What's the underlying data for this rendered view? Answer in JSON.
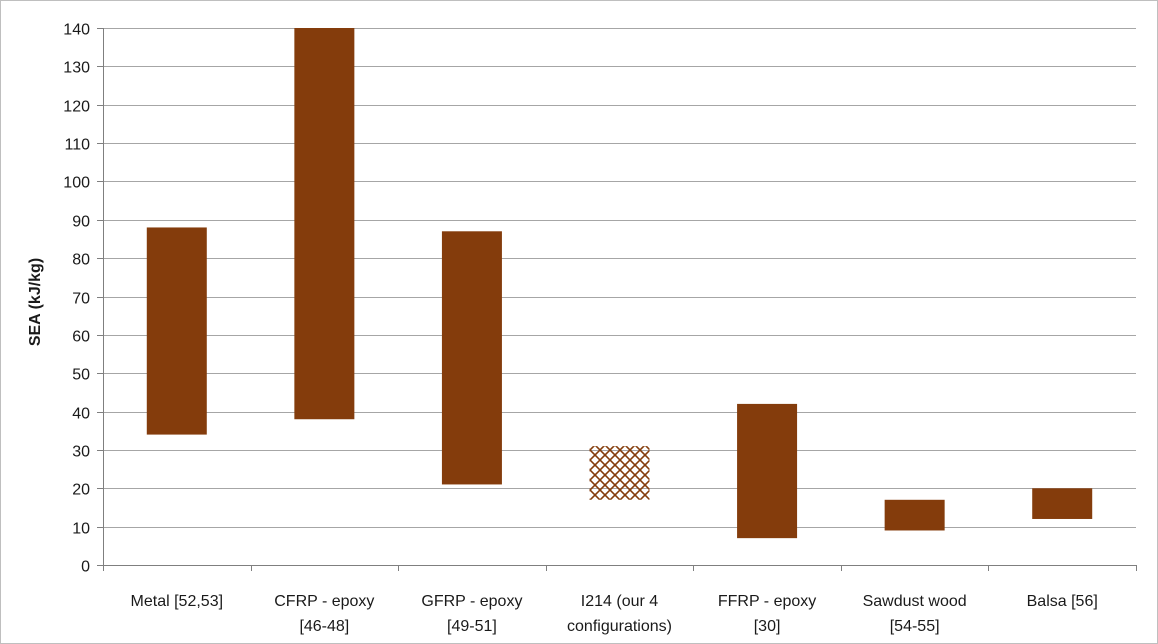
{
  "chart_data": {
    "type": "bar",
    "subtype": "floating-range",
    "title": "",
    "xlabel": "",
    "ylabel": "SEA (kJ/kg)",
    "ylim": [
      0,
      140
    ],
    "yticks": [
      0,
      10,
      20,
      30,
      40,
      50,
      60,
      70,
      80,
      90,
      100,
      110,
      120,
      130,
      140
    ],
    "grid": true,
    "legend": "none",
    "colors": {
      "bar": "#843C0C",
      "hatch": "#843C0C",
      "grid": "#a6a6a6"
    },
    "categories": [
      [
        "Metal [52,53]"
      ],
      [
        "CFRP - epoxy",
        "[46-48]"
      ],
      [
        "GFRP - epoxy",
        "[49-51]"
      ],
      [
        "I214 (our 4",
        "configurations)"
      ],
      [
        "FFRP - epoxy",
        "[30]"
      ],
      [
        "Sawdust wood",
        "[54-55]"
      ],
      [
        "Balsa [56]"
      ]
    ],
    "ranges": [
      {
        "low": 34,
        "high": 88,
        "pattern": "solid"
      },
      {
        "low": 38,
        "high": 140,
        "pattern": "solid"
      },
      {
        "low": 21,
        "high": 87,
        "pattern": "solid"
      },
      {
        "low": 17,
        "high": 31,
        "pattern": "crosshatch"
      },
      {
        "low": 7,
        "high": 42,
        "pattern": "solid"
      },
      {
        "low": 9,
        "high": 17,
        "pattern": "solid"
      },
      {
        "low": 12,
        "high": 20,
        "pattern": "solid"
      }
    ]
  }
}
